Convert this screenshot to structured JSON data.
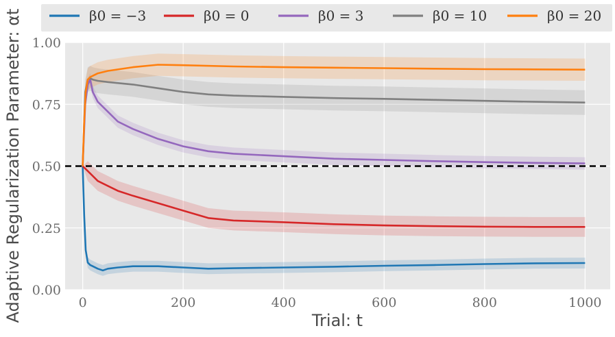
{
  "chart_data": {
    "type": "line",
    "xlabel": "Trial: t",
    "ylabel": "Adaptive Regularization Parameter: αt",
    "xlim": [
      -35,
      1050
    ],
    "ylim": [
      0.0,
      1.0
    ],
    "xticks": [
      0,
      200,
      400,
      600,
      800,
      1000
    ],
    "xtick_labels": [
      "0",
      "200",
      "400",
      "600",
      "800",
      "1000"
    ],
    "yticks": [
      0.0,
      0.25,
      0.5,
      0.75,
      1.0
    ],
    "ytick_labels": [
      "0.00",
      "0.25",
      "0.50",
      "0.75",
      "1.00"
    ],
    "grid": true,
    "legend_position": "top",
    "reference_line": {
      "y": 0.5,
      "style": "dashed",
      "color": "#000000"
    },
    "series": [
      {
        "name": "β0 = −3",
        "color": "#1f77b4",
        "x": [
          0,
          3,
          6,
          10,
          15,
          20,
          30,
          40,
          50,
          70,
          100,
          150,
          200,
          250,
          300,
          400,
          500,
          600,
          700,
          800,
          900,
          1000
        ],
        "values": [
          0.5,
          0.3,
          0.16,
          0.11,
          0.1,
          0.095,
          0.085,
          0.078,
          0.085,
          0.09,
          0.095,
          0.095,
          0.09,
          0.085,
          0.087,
          0.09,
          0.093,
          0.097,
          0.1,
          0.104,
          0.107,
          0.108
        ],
        "band": 0.022
      },
      {
        "name": "β0 = 0",
        "color": "#d62728",
        "x": [
          0,
          10,
          20,
          30,
          50,
          70,
          100,
          150,
          200,
          250,
          300,
          400,
          500,
          600,
          700,
          800,
          900,
          1000
        ],
        "values": [
          0.5,
          0.48,
          0.46,
          0.44,
          0.42,
          0.4,
          0.38,
          0.35,
          0.32,
          0.29,
          0.28,
          0.273,
          0.265,
          0.26,
          0.257,
          0.255,
          0.254,
          0.254
        ],
        "band": 0.04
      },
      {
        "name": "β0 = 3",
        "color": "#9467bd",
        "x": [
          0,
          5,
          10,
          15,
          20,
          30,
          50,
          70,
          100,
          150,
          200,
          250,
          300,
          400,
          500,
          600,
          700,
          800,
          900,
          1000
        ],
        "values": [
          0.5,
          0.75,
          0.83,
          0.85,
          0.8,
          0.76,
          0.72,
          0.68,
          0.65,
          0.61,
          0.58,
          0.56,
          0.55,
          0.54,
          0.53,
          0.525,
          0.52,
          0.516,
          0.513,
          0.511
        ],
        "band": 0.025
      },
      {
        "name": "β0 = 10",
        "color": "#7f7f7f",
        "x": [
          0,
          5,
          10,
          15,
          20,
          30,
          50,
          100,
          150,
          200,
          250,
          300,
          400,
          500,
          600,
          700,
          800,
          900,
          1000
        ],
        "values": [
          0.5,
          0.8,
          0.85,
          0.855,
          0.85,
          0.845,
          0.84,
          0.83,
          0.815,
          0.8,
          0.79,
          0.785,
          0.78,
          0.775,
          0.772,
          0.768,
          0.764,
          0.76,
          0.757
        ],
        "band": 0.05
      },
      {
        "name": "β0 = 20",
        "color": "#ff7f0e",
        "x": [
          0,
          3,
          6,
          10,
          15,
          20,
          30,
          50,
          100,
          150,
          200,
          300,
          400,
          500,
          600,
          700,
          800,
          900,
          1000
        ],
        "values": [
          0.5,
          0.68,
          0.8,
          0.85,
          0.86,
          0.865,
          0.875,
          0.885,
          0.9,
          0.91,
          0.908,
          0.903,
          0.9,
          0.898,
          0.896,
          0.894,
          0.892,
          0.891,
          0.89
        ],
        "band": 0.045
      }
    ]
  }
}
